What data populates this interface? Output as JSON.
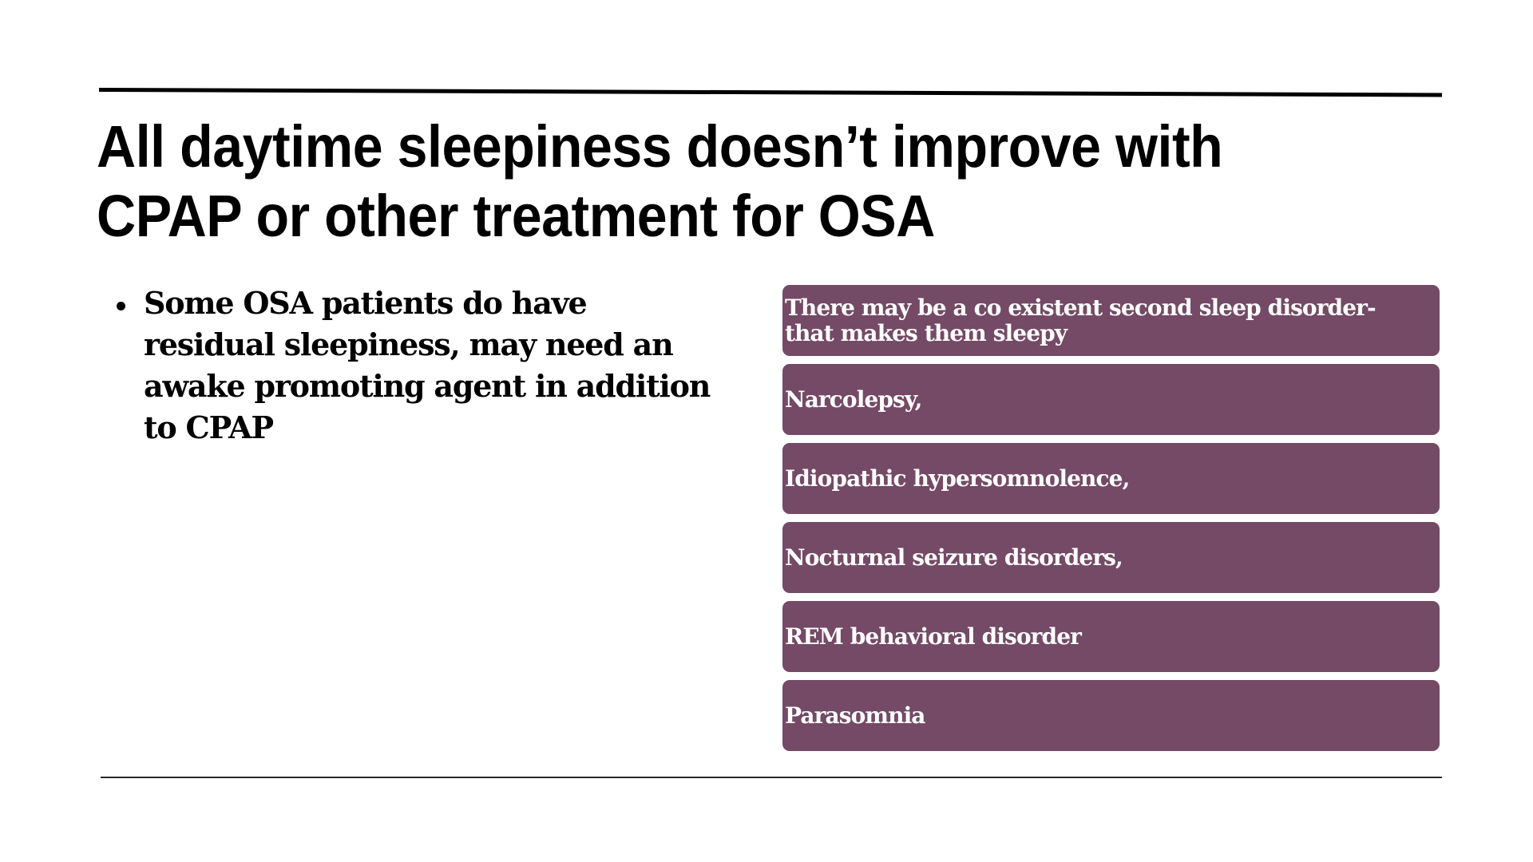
{
  "slide": {
    "title": "All daytime sleepiness doesn’t improve with CPAP or other treatment for OSA",
    "bullets": [
      "Some OSA patients do have residual sleepiness, may need an awake promoting agent in addition to CPAP"
    ],
    "boxes": [
      "There may be a co existent second sleep disorder-that makes them sleepy",
      "Narcolepsy,",
      "Idiopathic hypersomnolence,",
      "Nocturnal seizure disorders,",
      "REM behavioral disorder",
      "Parasomnia"
    ],
    "colors": {
      "box_fill": "#744a66",
      "box_text": "#ffffff",
      "text": "#000000",
      "background": "#ffffff"
    }
  }
}
